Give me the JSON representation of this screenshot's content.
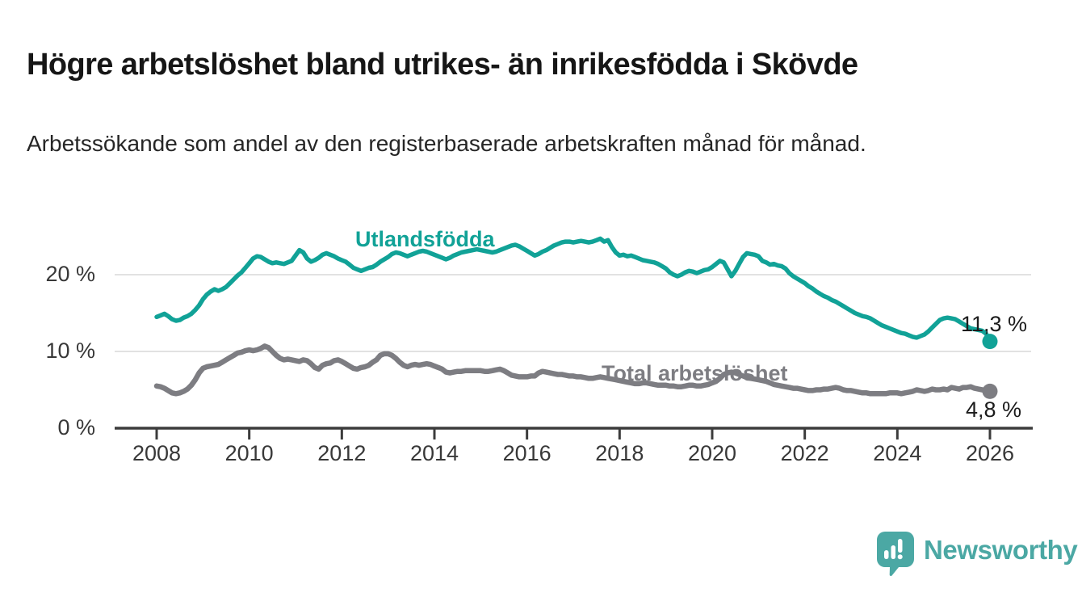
{
  "header": {
    "title": "Högre arbetslöshet bland utrikes- än inrikesfödda i Skövde",
    "subtitle": "Arbetssökande som andel av den registerbaserade arbetskraften månad för månad."
  },
  "chart_data": {
    "type": "line",
    "title": "Högre arbetslöshet bland utrikes- än inrikesfödda i Skövde",
    "subtitle": "Arbetssökande som andel av den registerbaserade arbetskraften månad för månad.",
    "unit": "%",
    "grid": "horizontal-only",
    "legend_position": "inline-labels-on-lines",
    "x_start": "2008-01",
    "x_end": "2026-01",
    "x_interval": "monthly",
    "x_ticks": [
      2008,
      2010,
      2012,
      2014,
      2016,
      2018,
      2020,
      2022,
      2024,
      2026
    ],
    "ylim": [
      0,
      26.5
    ],
    "y_gridlines": [
      10,
      20
    ],
    "y_tick_labels": [
      {
        "value": 20,
        "label": "20 %"
      },
      {
        "value": 10,
        "label": "10 %"
      },
      {
        "value": 0,
        "label": "0 %"
      }
    ],
    "colors": {
      "utlandsfodda": "#11a297",
      "total": "#7d7d82",
      "gridline": "#d8d8d8",
      "axis": "#3c3c3c"
    },
    "series": [
      {
        "name": "Utlandsfödda",
        "color": "#11a297",
        "line_width": 5.5,
        "end_label": "11,3 %",
        "end_value": 11.3,
        "values": [
          14.5,
          14.7,
          14.9,
          14.6,
          14.2,
          14.0,
          14.1,
          14.4,
          14.6,
          14.9,
          15.4,
          16.0,
          16.8,
          17.4,
          17.8,
          18.1,
          17.9,
          18.1,
          18.4,
          18.9,
          19.4,
          19.9,
          20.3,
          20.9,
          21.5,
          22.1,
          22.4,
          22.3,
          22.0,
          21.7,
          21.5,
          21.6,
          21.5,
          21.4,
          21.6,
          21.8,
          22.5,
          23.2,
          22.9,
          22.1,
          21.7,
          21.9,
          22.2,
          22.6,
          22.8,
          22.6,
          22.4,
          22.1,
          21.9,
          21.7,
          21.3,
          20.9,
          20.7,
          20.5,
          20.7,
          20.9,
          21.0,
          21.3,
          21.7,
          22.0,
          22.3,
          22.7,
          22.9,
          22.8,
          22.6,
          22.4,
          22.6,
          22.8,
          23.0,
          23.1,
          23.0,
          22.8,
          22.6,
          22.4,
          22.2,
          22.0,
          22.2,
          22.5,
          22.7,
          22.9,
          23.0,
          23.1,
          23.2,
          23.3,
          23.2,
          23.1,
          23.0,
          22.9,
          23.0,
          23.2,
          23.4,
          23.6,
          23.8,
          23.9,
          23.7,
          23.4,
          23.1,
          22.8,
          22.5,
          22.7,
          23.0,
          23.2,
          23.5,
          23.8,
          24.0,
          24.2,
          24.3,
          24.3,
          24.2,
          24.3,
          24.4,
          24.3,
          24.2,
          24.3,
          24.5,
          24.7,
          24.3,
          24.5,
          23.6,
          22.9,
          22.5,
          22.6,
          22.4,
          22.5,
          22.3,
          22.1,
          21.9,
          21.8,
          21.7,
          21.6,
          21.4,
          21.1,
          20.8,
          20.3,
          20.0,
          19.8,
          20.0,
          20.3,
          20.5,
          20.4,
          20.2,
          20.4,
          20.6,
          20.7,
          21.0,
          21.4,
          21.8,
          21.6,
          20.7,
          19.8,
          20.5,
          21.4,
          22.3,
          22.8,
          22.7,
          22.6,
          22.4,
          21.8,
          21.6,
          21.3,
          21.4,
          21.2,
          21.1,
          20.8,
          20.2,
          19.8,
          19.5,
          19.2,
          18.9,
          18.5,
          18.2,
          17.8,
          17.5,
          17.2,
          17.0,
          16.7,
          16.5,
          16.2,
          15.9,
          15.6,
          15.3,
          15.0,
          14.8,
          14.6,
          14.5,
          14.3,
          14.0,
          13.7,
          13.4,
          13.2,
          13.0,
          12.8,
          12.6,
          12.4,
          12.3,
          12.1,
          11.9,
          11.8,
          12.0,
          12.2,
          12.6,
          13.1,
          13.6,
          14.1,
          14.3,
          14.4,
          14.3,
          14.2,
          13.9,
          13.6,
          13.3,
          13.0,
          12.9,
          12.8,
          12.7,
          12.3,
          11.3
        ]
      },
      {
        "name": "Total arbetslöshet",
        "color": "#7d7d82",
        "line_width": 6.5,
        "end_label": "4,8 %",
        "end_value": 4.8,
        "values": [
          5.5,
          5.4,
          5.2,
          4.9,
          4.6,
          4.5,
          4.6,
          4.8,
          5.1,
          5.6,
          6.3,
          7.2,
          7.8,
          8.0,
          8.1,
          8.2,
          8.3,
          8.6,
          8.9,
          9.2,
          9.5,
          9.8,
          9.9,
          10.1,
          10.2,
          10.1,
          10.2,
          10.4,
          10.7,
          10.5,
          10.0,
          9.5,
          9.1,
          8.9,
          9.0,
          8.9,
          8.8,
          8.7,
          8.9,
          8.8,
          8.4,
          7.9,
          7.7,
          8.2,
          8.4,
          8.5,
          8.8,
          8.9,
          8.7,
          8.4,
          8.1,
          7.8,
          7.7,
          7.9,
          8.0,
          8.2,
          8.6,
          8.9,
          9.5,
          9.7,
          9.7,
          9.5,
          9.1,
          8.6,
          8.2,
          8.0,
          8.2,
          8.3,
          8.2,
          8.3,
          8.4,
          8.3,
          8.1,
          7.9,
          7.7,
          7.3,
          7.2,
          7.3,
          7.4,
          7.4,
          7.5,
          7.5,
          7.5,
          7.5,
          7.5,
          7.4,
          7.4,
          7.5,
          7.6,
          7.7,
          7.5,
          7.2,
          6.9,
          6.8,
          6.7,
          6.7,
          6.7,
          6.8,
          6.8,
          7.2,
          7.4,
          7.3,
          7.2,
          7.1,
          7.0,
          7.0,
          6.9,
          6.8,
          6.8,
          6.7,
          6.7,
          6.6,
          6.5,
          6.5,
          6.6,
          6.7,
          6.6,
          6.5,
          6.4,
          6.3,
          6.2,
          6.1,
          6.0,
          5.9,
          5.8,
          5.8,
          5.9,
          5.9,
          5.8,
          5.7,
          5.6,
          5.6,
          5.6,
          5.5,
          5.5,
          5.4,
          5.4,
          5.5,
          5.6,
          5.6,
          5.5,
          5.5,
          5.6,
          5.7,
          5.9,
          6.1,
          6.5,
          7.0,
          7.2,
          7.3,
          7.2,
          7.0,
          6.8,
          6.6,
          6.5,
          6.4,
          6.3,
          6.2,
          6.1,
          5.9,
          5.7,
          5.6,
          5.5,
          5.4,
          5.3,
          5.2,
          5.2,
          5.1,
          5.0,
          4.9,
          4.9,
          5.0,
          5.0,
          5.1,
          5.1,
          5.2,
          5.3,
          5.2,
          5.0,
          4.9,
          4.9,
          4.8,
          4.7,
          4.6,
          4.6,
          4.5,
          4.5,
          4.5,
          4.5,
          4.5,
          4.6,
          4.6,
          4.6,
          4.5,
          4.6,
          4.7,
          4.8,
          5.0,
          4.9,
          4.8,
          4.9,
          5.1,
          5.0,
          5.0,
          5.1,
          5.0,
          5.3,
          5.2,
          5.1,
          5.3,
          5.3,
          5.4,
          5.2,
          5.1,
          5.0,
          4.9,
          4.8
        ]
      }
    ]
  },
  "footer": {
    "brand": "Newsworthy",
    "logo_color": "#4ba8a4",
    "logo_icon": "speech-bubble-bar-chart-icon"
  }
}
